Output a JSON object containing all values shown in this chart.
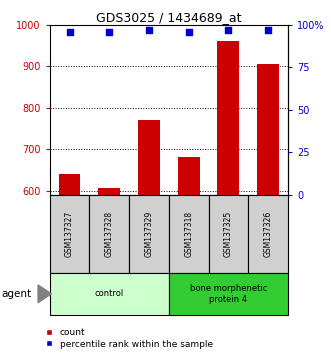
{
  "title": "GDS3025 / 1434689_at",
  "samples": [
    "GSM137327",
    "GSM137328",
    "GSM137329",
    "GSM137318",
    "GSM137325",
    "GSM137326"
  ],
  "counts": [
    640,
    607,
    770,
    680,
    960,
    905
  ],
  "percentiles": [
    96,
    96,
    97,
    96,
    97,
    97
  ],
  "ylim_left": [
    590,
    1000
  ],
  "ylim_right": [
    0,
    100
  ],
  "yticks_left": [
    600,
    700,
    800,
    900,
    1000
  ],
  "yticks_right": [
    0,
    25,
    50,
    75,
    100
  ],
  "yticklabels_right": [
    "0",
    "25",
    "50",
    "75",
    "100%"
  ],
  "bar_color": "#cc0000",
  "dot_color": "#0000cc",
  "groups": [
    {
      "label": "control",
      "start": 0,
      "end": 3,
      "color": "#ccffcc"
    },
    {
      "label": "bone morphenetic\nprotein 4",
      "start": 3,
      "end": 6,
      "color": "#33cc33"
    }
  ],
  "agent_label": "agent",
  "legend_count_label": "count",
  "legend_pct_label": "percentile rank within the sample",
  "bar_width": 0.55
}
